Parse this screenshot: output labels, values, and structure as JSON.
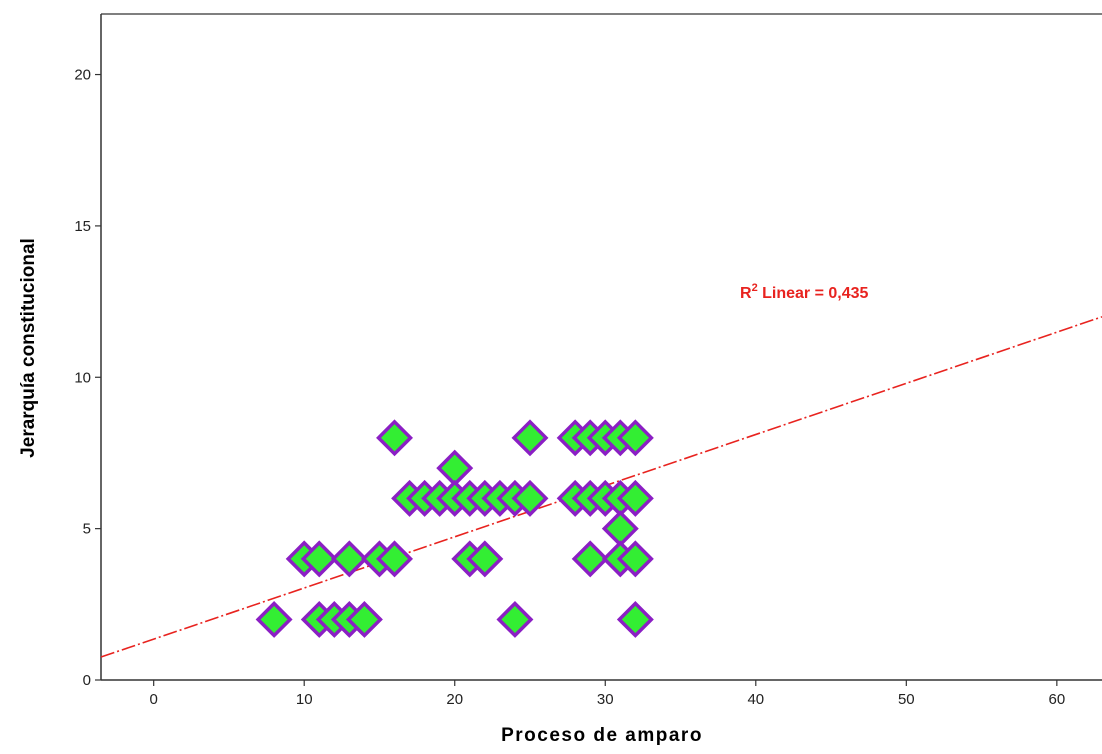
{
  "chart_data": {
    "type": "scatter",
    "xlabel": "Proceso de amparo",
    "ylabel": "Jerarquía constitucional",
    "xlim": [
      -3.5,
      63
    ],
    "ylim": [
      0,
      22
    ],
    "x_ticks": [
      0,
      10,
      20,
      30,
      40,
      50,
      60
    ],
    "y_ticks": [
      0,
      5,
      10,
      15,
      20
    ],
    "grid": false,
    "series": [
      {
        "marker": "diamond",
        "fill_color": "#33ee33",
        "edge_color": "#8b1fc4",
        "points": [
          {
            "x": 16,
            "y": 8
          },
          {
            "x": 25,
            "y": 8
          },
          {
            "x": 28,
            "y": 8
          },
          {
            "x": 29,
            "y": 8
          },
          {
            "x": 30,
            "y": 8
          },
          {
            "x": 31,
            "y": 8
          },
          {
            "x": 32,
            "y": 8
          },
          {
            "x": 20,
            "y": 7
          },
          {
            "x": 17,
            "y": 6
          },
          {
            "x": 18,
            "y": 6
          },
          {
            "x": 19,
            "y": 6
          },
          {
            "x": 20,
            "y": 6
          },
          {
            "x": 21,
            "y": 6
          },
          {
            "x": 22,
            "y": 6
          },
          {
            "x": 23,
            "y": 6
          },
          {
            "x": 24,
            "y": 6
          },
          {
            "x": 25,
            "y": 6
          },
          {
            "x": 28,
            "y": 6
          },
          {
            "x": 29,
            "y": 6
          },
          {
            "x": 30,
            "y": 6
          },
          {
            "x": 31,
            "y": 6
          },
          {
            "x": 32,
            "y": 6
          },
          {
            "x": 31,
            "y": 5
          },
          {
            "x": 10,
            "y": 4
          },
          {
            "x": 11,
            "y": 4
          },
          {
            "x": 13,
            "y": 4
          },
          {
            "x": 15,
            "y": 4
          },
          {
            "x": 16,
            "y": 4
          },
          {
            "x": 21,
            "y": 4
          },
          {
            "x": 22,
            "y": 4
          },
          {
            "x": 29,
            "y": 4
          },
          {
            "x": 31,
            "y": 4
          },
          {
            "x": 32,
            "y": 4
          },
          {
            "x": 8,
            "y": 2
          },
          {
            "x": 11,
            "y": 2
          },
          {
            "x": 12,
            "y": 2
          },
          {
            "x": 13,
            "y": 2
          },
          {
            "x": 14,
            "y": 2
          },
          {
            "x": 24,
            "y": 2
          },
          {
            "x": 32,
            "y": 2
          }
        ]
      }
    ],
    "fit_line": {
      "type": "linear",
      "color": "#e8231f",
      "style": "dash-dot",
      "intercept": 1.35,
      "slope": 0.169
    },
    "annotations": [
      {
        "text_main": "R",
        "superscript": "2",
        "text_rest": " Linear = 0,435",
        "color": "#e8231f"
      }
    ]
  }
}
